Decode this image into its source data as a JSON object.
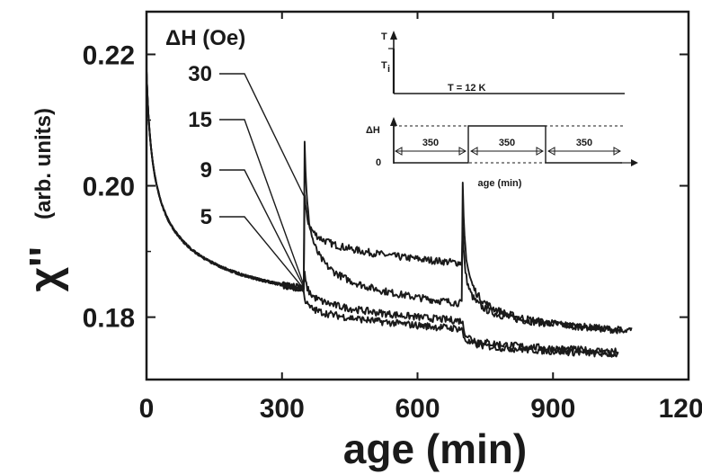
{
  "chart_data": {
    "type": "line",
    "title": "",
    "xlabel": "age (min)",
    "ylabel_symbol": "χ''",
    "ylabel_units": "(arb. units)",
    "xlim": [
      0,
      1200
    ],
    "ylim": [
      0.1705,
      0.2265
    ],
    "x_ticks": [
      0,
      300,
      600,
      900,
      1200
    ],
    "x_tick_labels": [
      "0",
      "300",
      "600",
      "900",
      "1200"
    ],
    "y_ticks": [
      0.18,
      0.2,
      0.22
    ],
    "y_tick_labels": [
      "0.18",
      "0.20",
      "0.22"
    ],
    "grid": false,
    "legend": {
      "title": "ΔH (Oe)",
      "placement": "top-left",
      "entries": [
        "30",
        "15",
        "9",
        "5"
      ]
    },
    "series": [
      {
        "name": "30",
        "dH": 30,
        "peak1": 0.1985,
        "end1": 0.1875,
        "peak2": 0.1935,
        "end2": 0.177,
        "x_end": 1075
      },
      {
        "name": "15",
        "dH": 15,
        "peak1": 0.207,
        "end1": 0.18,
        "peak2": 0.2,
        "end2": 0.1765,
        "x_end": 1055
      },
      {
        "name": "9",
        "dH": 9,
        "peak1": 0.1865,
        "end1": 0.179,
        "peak2": 0.179,
        "end2": 0.1745,
        "x_end": 1045
      },
      {
        "name": "5",
        "dH": 5,
        "peak1": 0.183,
        "end1": 0.178,
        "peak2": 0.1775,
        "end2": 0.1742,
        "x_end": 1045
      }
    ],
    "baseline": {
      "start": 0.2175,
      "t_switch": 350,
      "t_switch2": 700
    },
    "inset": {
      "temp_axis_label": "T",
      "temp_level_label": "T",
      "temp_level_sub": "i",
      "temp_annotation": "T = 12 K",
      "field_axis_label": "ΔH",
      "field_zero_label": "0",
      "segments": [
        "350",
        "350",
        "350"
      ],
      "xlabel": "age (min)"
    }
  }
}
